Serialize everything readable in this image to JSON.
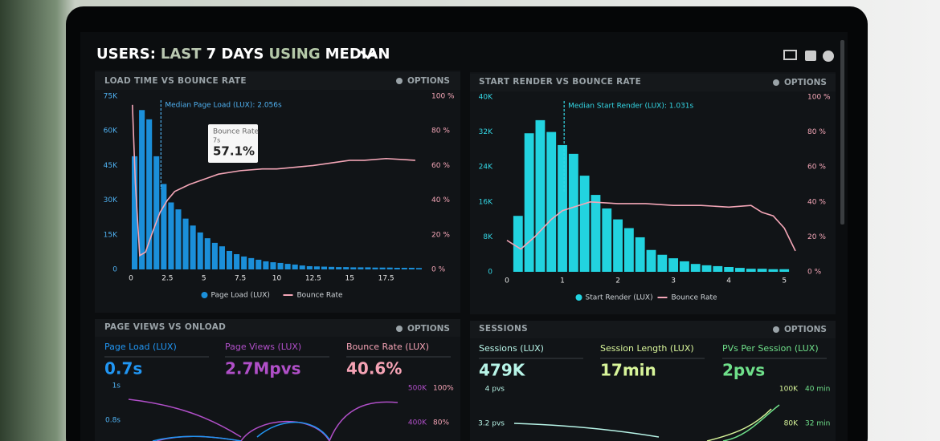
{
  "header": {
    "parts": [
      "USERS:",
      "LAST",
      "7 DAYS",
      "USING",
      "MEDIAN"
    ]
  },
  "chart_data": [
    {
      "type": "histogram",
      "title": "LOAD TIME VS BOUNCE RATE",
      "options": "OPTIONS",
      "bins": [
        0,
        0.5,
        1,
        1.5,
        2,
        2.5,
        3,
        3.5,
        4,
        4.5,
        5,
        5.5,
        6,
        6.5,
        7,
        7.5,
        8,
        8.5,
        9,
        9.5,
        10,
        10.5,
        11,
        11.5,
        12,
        12.5,
        13,
        13.5,
        14,
        14.5,
        15,
        15.5,
        16,
        16.5,
        17,
        17.5,
        18,
        18.5,
        19,
        19.5,
        20
      ],
      "xlim": [
        0,
        20
      ],
      "xticks": [
        0,
        2.5,
        5,
        7.5,
        10,
        12.5,
        15,
        17.5
      ],
      "ylim": [
        0,
        75000
      ],
      "yticks": [
        {
          "value": 0,
          "label": "0"
        },
        {
          "value": 15000,
          "label": "15K"
        },
        {
          "value": 30000,
          "label": "30K"
        },
        {
          "value": 45000,
          "label": "45K"
        },
        {
          "value": 60000,
          "label": "60K"
        },
        {
          "value": 75000,
          "label": "75K"
        }
      ],
      "y2lim": [
        0,
        100
      ],
      "y2ticks": [
        {
          "value": 0,
          "label": "0 %"
        },
        {
          "value": 20,
          "label": "20 %"
        },
        {
          "value": 40,
          "label": "40 %"
        },
        {
          "value": 60,
          "label": "60 %"
        },
        {
          "value": 80,
          "label": "80 %"
        },
        {
          "value": 100,
          "label": "100 %"
        }
      ],
      "series": [
        {
          "name": "Page Load (LUX)",
          "color": "#1b8fd9",
          "values": [
            49000,
            69000,
            65000,
            49000,
            37000,
            29000,
            26000,
            22000,
            19000,
            16000,
            13500,
            11500,
            10000,
            8000,
            6600,
            5600,
            4900,
            4200,
            3500,
            3100,
            2800,
            2400,
            2100,
            1700,
            1400,
            1300,
            1200,
            1100,
            1000,
            1000,
            900,
            900,
            900,
            800,
            800,
            800,
            700,
            700,
            700,
            600
          ]
        },
        {
          "name": "Bounce Rate",
          "color": "#f4a6b7",
          "axis": "y2",
          "x": [
            0.1,
            0.3,
            0.6,
            1.0,
            1.5,
            2.0,
            2.5,
            3,
            4,
            5,
            6,
            7.5,
            9,
            10,
            12.5,
            15,
            16,
            17.5,
            19.5
          ],
          "values": [
            95,
            50,
            8,
            10,
            22,
            33,
            40,
            45,
            49,
            52,
            55,
            57,
            58,
            58,
            60,
            63,
            63,
            64,
            63
          ]
        }
      ],
      "median": {
        "text": "Median Page Load (LUX): 2.056s",
        "x": 2.056
      },
      "tooltip": {
        "title": "Bounce Rate",
        "subtitle": "7s",
        "text": "57.1%"
      }
    },
    {
      "type": "histogram",
      "title": "START RENDER VS BOUNCE RATE",
      "options": "OPTIONS",
      "bins": [
        0.1,
        0.3,
        0.5,
        0.7,
        0.9,
        1.1,
        1.3,
        1.5,
        1.7,
        1.9,
        2.1,
        2.3,
        2.5,
        2.7,
        2.9,
        3.1,
        3.3,
        3.5,
        3.7,
        3.9,
        4.1,
        4.3,
        4.5,
        4.7,
        4.9,
        5.1
      ],
      "xlim": [
        0,
        5.2
      ],
      "xticks": [
        0,
        1,
        2,
        3,
        4,
        5
      ],
      "ylim": [
        0,
        40000
      ],
      "yticks": [
        {
          "value": 0,
          "label": "0"
        },
        {
          "value": 8000,
          "label": "8K"
        },
        {
          "value": 16000,
          "label": "16K"
        },
        {
          "value": 24000,
          "label": "24K"
        },
        {
          "value": 32000,
          "label": "32K"
        },
        {
          "value": 40000,
          "label": "40K"
        }
      ],
      "y2lim": [
        0,
        100
      ],
      "y2ticks": [
        {
          "value": 0,
          "label": "0 %"
        },
        {
          "value": 20,
          "label": "20 %"
        },
        {
          "value": 40,
          "label": "40 %"
        },
        {
          "value": 60,
          "label": "60 %"
        },
        {
          "value": 80,
          "label": "80 %"
        },
        {
          "value": 100,
          "label": "100 %"
        }
      ],
      "series": [
        {
          "name": "Start Render (LUX)",
          "color": "#22d3df",
          "values": [
            12800,
            31700,
            34700,
            32000,
            29000,
            27000,
            22000,
            17600,
            14500,
            12000,
            10000,
            7900,
            5000,
            3900,
            3100,
            2400,
            1800,
            1500,
            1300,
            1100,
            900,
            700,
            700,
            600,
            600
          ]
        },
        {
          "name": "Bounce Rate",
          "color": "#f4a6b7",
          "axis": "y2",
          "x": [
            0,
            0.25,
            0.5,
            0.8,
            1.0,
            1.5,
            2,
            2.5,
            3,
            3.5,
            4,
            4.4,
            4.6,
            4.8,
            5.0,
            5.2
          ],
          "values": [
            18,
            13,
            20,
            30,
            35,
            40,
            39,
            39,
            38,
            38,
            37,
            38,
            34,
            32,
            25,
            12
          ]
        }
      ],
      "median": {
        "text": "Median Start Render (LUX): 1.031s",
        "x": 1.031
      }
    }
  ],
  "panels": [
    {
      "title": "PAGE VIEWS VS ONLOAD",
      "options": "OPTIONS",
      "stats": [
        {
          "label": "Page Load (LUX)",
          "value": "0.7s"
        },
        {
          "label": "Page Views (LUX)",
          "value": "2.7Mpvs"
        },
        {
          "label": "Bounce Rate (LUX)",
          "value": "40.6%"
        }
      ],
      "axis_labels": [
        "1s",
        "0.8s",
        "500K",
        "400K",
        "100%",
        "80%"
      ]
    },
    {
      "title": "SESSIONS",
      "options": "OPTIONS",
      "stats": [
        {
          "label": "Sessions (LUX)",
          "value": "479K"
        },
        {
          "label": "Session Length (LUX)",
          "value": "17min"
        },
        {
          "label": "PVs Per Session (LUX)",
          "value": "2pvs"
        }
      ],
      "axis_labels": [
        "4 pvs",
        "3.2 pvs",
        "100K",
        "80K",
        "40 min",
        "32 min"
      ]
    }
  ]
}
